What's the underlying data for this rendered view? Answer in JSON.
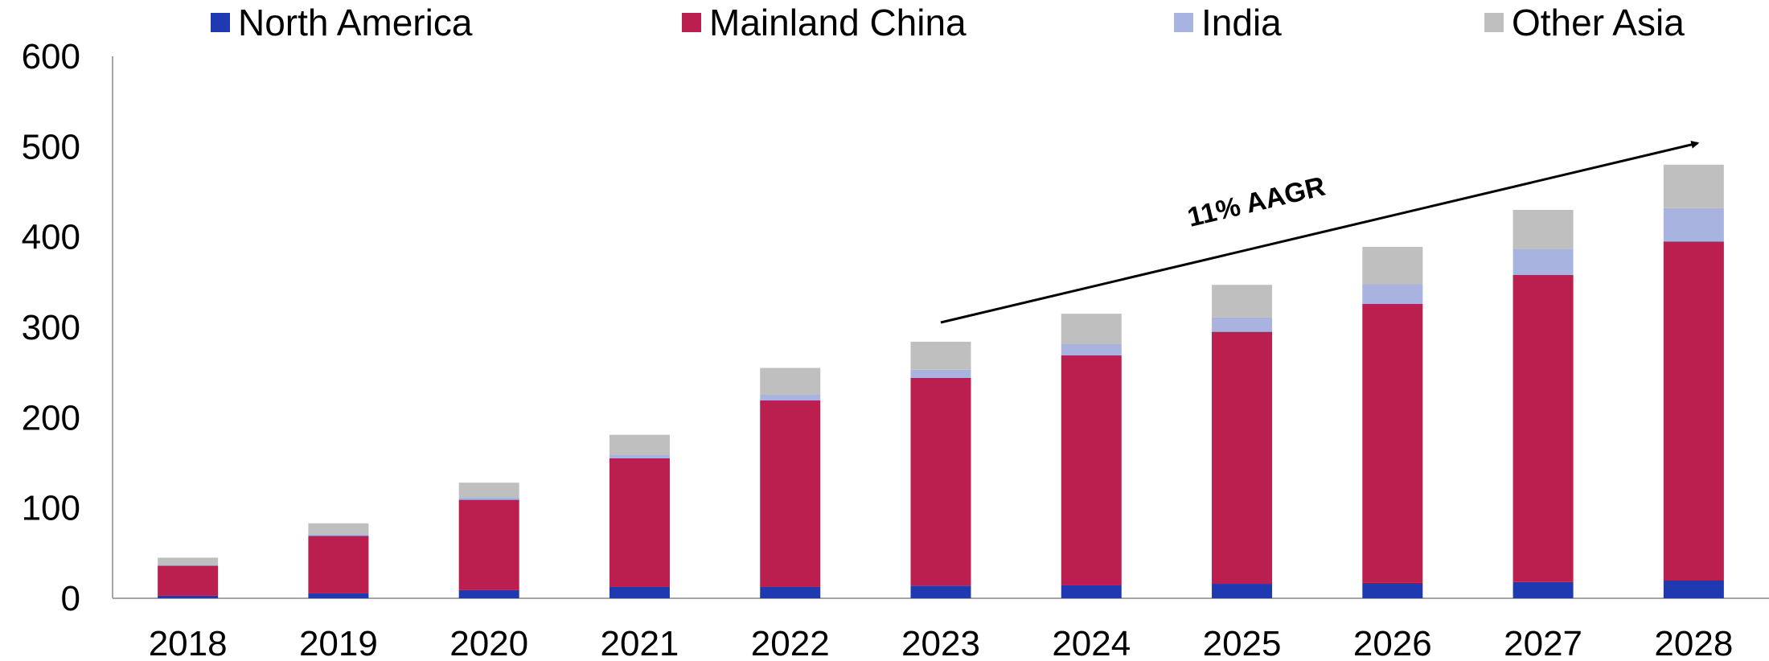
{
  "chart_data": {
    "type": "bar",
    "stacked": true,
    "categories": [
      "2018",
      "2019",
      "2020",
      "2021",
      "2022",
      "2023",
      "2024",
      "2025",
      "2026",
      "2027",
      "2028"
    ],
    "series": [
      {
        "name": "North America",
        "color": "#1F3AB0",
        "values": [
          3,
          6,
          9,
          13,
          13,
          14,
          15,
          16,
          17,
          18,
          20
        ]
      },
      {
        "name": "Mainland China",
        "color": "#BB1F4F",
        "values": [
          33,
          63,
          100,
          142,
          206,
          230,
          254,
          279,
          309,
          340,
          375
        ]
      },
      {
        "name": "India",
        "color": "#A9B3E0",
        "values": [
          1,
          2,
          3,
          4,
          7,
          9,
          13,
          16,
          22,
          29,
          37
        ]
      },
      {
        "name": "Other Asia",
        "color": "#BFBFBF",
        "values": [
          8,
          12,
          16,
          22,
          29,
          31,
          33,
          36,
          41,
          43,
          48
        ]
      }
    ],
    "title": "",
    "xlabel": "",
    "ylabel": "",
    "ylim": [
      0,
      600
    ],
    "yticks": [
      "0",
      "100",
      "200",
      "300",
      "400",
      "500",
      "600"
    ],
    "grid": false,
    "legend_position": "top",
    "annotation": {
      "text": "11% AAGR",
      "arrow_from": "2023",
      "arrow_to": "2028"
    }
  }
}
